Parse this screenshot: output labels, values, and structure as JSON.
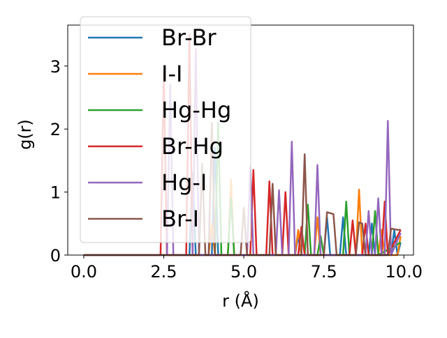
{
  "chart_data": {
    "type": "line",
    "xlabel": "r (Å)",
    "ylabel": "g(r)",
    "xlim": [
      -0.5,
      10.3
    ],
    "ylim": [
      0,
      3.65
    ],
    "xticks": [
      0.0,
      2.5,
      5.0,
      7.5,
      10.0
    ],
    "xtick_labels": [
      "0.0",
      "2.5",
      "5.0",
      "7.5",
      "10.0"
    ],
    "yticks": [
      0,
      1,
      2,
      3
    ],
    "ytick_labels": [
      "0",
      "1",
      "2",
      "3"
    ],
    "grid": false,
    "legend_position": "top-left",
    "series": [
      {
        "name": "Br-Br",
        "color": "#1f77b4",
        "points": [
          [
            0,
            0
          ],
          [
            3.3,
            0
          ],
          [
            3.4,
            1.3
          ],
          [
            3.5,
            0
          ],
          [
            4.0,
            0
          ],
          [
            4.1,
            1.7
          ],
          [
            4.2,
            0
          ],
          [
            6.6,
            0
          ],
          [
            6.7,
            0.3
          ],
          [
            6.8,
            0
          ],
          [
            7.5,
            0
          ],
          [
            7.6,
            0.6
          ],
          [
            7.7,
            0
          ],
          [
            8.0,
            0
          ],
          [
            8.1,
            0.6
          ],
          [
            8.2,
            0
          ],
          [
            8.9,
            0
          ],
          [
            9.0,
            0.5
          ],
          [
            9.1,
            0
          ],
          [
            9.6,
            0
          ],
          [
            9.7,
            0.4
          ],
          [
            9.8,
            0
          ],
          [
            9.9,
            0.2
          ]
        ]
      },
      {
        "name": "I-I",
        "color": "#ff7f0e",
        "points": [
          [
            0,
            0
          ],
          [
            3.9,
            0
          ],
          [
            4.0,
            0.5
          ],
          [
            4.1,
            0
          ],
          [
            4.5,
            0
          ],
          [
            4.6,
            1.2
          ],
          [
            4.7,
            0
          ],
          [
            6.6,
            0
          ],
          [
            6.7,
            0.4
          ],
          [
            6.8,
            0
          ],
          [
            7.2,
            0
          ],
          [
            7.3,
            0.6
          ],
          [
            7.4,
            0
          ],
          [
            8.5,
            0
          ],
          [
            8.6,
            1.04
          ],
          [
            8.7,
            0
          ],
          [
            9.2,
            0
          ],
          [
            9.3,
            0.4
          ],
          [
            9.4,
            0
          ],
          [
            9.8,
            0
          ],
          [
            9.9,
            0.3
          ]
        ]
      },
      {
        "name": "Hg-Hg",
        "color": "#2ca02c",
        "points": [
          [
            0,
            0
          ],
          [
            4.1,
            0
          ],
          [
            4.2,
            2.1
          ],
          [
            4.3,
            0
          ],
          [
            4.5,
            0
          ],
          [
            4.6,
            0.9
          ],
          [
            4.7,
            0
          ],
          [
            6.9,
            0
          ],
          [
            7.0,
            0.8
          ],
          [
            7.1,
            0
          ],
          [
            7.3,
            0
          ],
          [
            7.4,
            0.3
          ],
          [
            7.5,
            0
          ],
          [
            8.1,
            0
          ],
          [
            8.2,
            0.85
          ],
          [
            8.3,
            0
          ],
          [
            9.0,
            0
          ],
          [
            9.1,
            0.7
          ],
          [
            9.2,
            0
          ],
          [
            9.9,
            0.2
          ]
        ]
      },
      {
        "name": "Br-Hg",
        "color": "#d62728",
        "points": [
          [
            0,
            0
          ],
          [
            2.4,
            0
          ],
          [
            2.5,
            2.9
          ],
          [
            2.6,
            0
          ],
          [
            3.2,
            0
          ],
          [
            3.3,
            3.5
          ],
          [
            3.4,
            0
          ],
          [
            5.2,
            0
          ],
          [
            5.3,
            1.35
          ],
          [
            5.4,
            0
          ],
          [
            5.7,
            0
          ],
          [
            5.8,
            1.17
          ],
          [
            5.9,
            0
          ],
          [
            6.2,
            0
          ],
          [
            6.3,
            1.0
          ],
          [
            6.4,
            0
          ],
          [
            6.7,
            0
          ],
          [
            6.8,
            0.45
          ],
          [
            6.9,
            0
          ],
          [
            8.3,
            0
          ],
          [
            8.4,
            0.55
          ],
          [
            8.5,
            0
          ],
          [
            8.7,
            0
          ],
          [
            8.8,
            0.5
          ],
          [
            8.9,
            0
          ],
          [
            9.3,
            0
          ],
          [
            9.4,
            0.85
          ],
          [
            9.5,
            0
          ],
          [
            9.9,
            0.4
          ]
        ]
      },
      {
        "name": "Hg-I",
        "color": "#9467bd",
        "points": [
          [
            0,
            0
          ],
          [
            2.6,
            0
          ],
          [
            2.7,
            2.7
          ],
          [
            2.8,
            0
          ],
          [
            3.4,
            0
          ],
          [
            3.5,
            3.27
          ],
          [
            3.6,
            0
          ],
          [
            5.1,
            0
          ],
          [
            5.2,
            1.4
          ],
          [
            5.3,
            0
          ],
          [
            6.0,
            0
          ],
          [
            6.1,
            1.03
          ],
          [
            6.2,
            0
          ],
          [
            6.4,
            0
          ],
          [
            6.5,
            1.8
          ],
          [
            6.6,
            0
          ],
          [
            7.2,
            0
          ],
          [
            7.3,
            1.43
          ],
          [
            7.4,
            0
          ],
          [
            8.8,
            0
          ],
          [
            8.9,
            0.7
          ],
          [
            9.0,
            0
          ],
          [
            9.1,
            0
          ],
          [
            9.2,
            0.9
          ],
          [
            9.3,
            0
          ],
          [
            9.4,
            0
          ],
          [
            9.5,
            2.13
          ],
          [
            9.6,
            0
          ],
          [
            9.9,
            0.35
          ]
        ]
      },
      {
        "name": "Br-I",
        "color": "#8c564b",
        "points": [
          [
            0,
            0
          ],
          [
            3.6,
            0
          ],
          [
            3.7,
            1.45
          ],
          [
            3.8,
            0
          ],
          [
            3.9,
            0
          ],
          [
            4.0,
            2.1
          ],
          [
            4.1,
            0
          ],
          [
            4.9,
            0
          ],
          [
            5.0,
            0.75
          ],
          [
            5.1,
            0
          ],
          [
            5.8,
            0
          ],
          [
            5.9,
            1.13
          ],
          [
            6.0,
            0
          ],
          [
            6.8,
            0
          ],
          [
            6.9,
            1.6
          ],
          [
            7.0,
            0
          ],
          [
            7.5,
            0
          ],
          [
            7.6,
            0.68
          ],
          [
            7.8,
            0.65
          ],
          [
            7.9,
            0
          ],
          [
            8.5,
            0
          ],
          [
            8.6,
            0.52
          ],
          [
            8.7,
            0.5
          ],
          [
            8.8,
            0
          ],
          [
            9.5,
            0
          ],
          [
            9.6,
            0.42
          ],
          [
            9.8,
            0.4
          ],
          [
            9.9,
            0.4
          ]
        ]
      }
    ]
  }
}
